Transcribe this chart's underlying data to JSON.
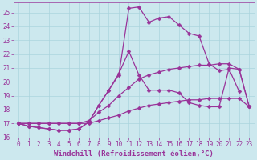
{
  "xlabel": "Windchill (Refroidissement éolien,°C)",
  "bg_color": "#cce8ee",
  "line_color": "#993399",
  "grid_color": "#aad4dd",
  "xlim": [
    -0.5,
    23.5
  ],
  "ylim": [
    16.0,
    25.7
  ],
  "xticks": [
    0,
    1,
    2,
    3,
    4,
    5,
    6,
    7,
    8,
    9,
    10,
    11,
    12,
    13,
    14,
    15,
    16,
    17,
    18,
    19,
    20,
    21,
    22,
    23
  ],
  "yticks": [
    16,
    17,
    18,
    19,
    20,
    21,
    22,
    23,
    24,
    25
  ],
  "line1_x": [
    0,
    1,
    2,
    3,
    4,
    5,
    6,
    7,
    8,
    9,
    10,
    11,
    12,
    13,
    14,
    15,
    16,
    17,
    18,
    19,
    20,
    21,
    22,
    23
  ],
  "line1_y": [
    17.0,
    17.0,
    17.0,
    17.0,
    17.0,
    17.0,
    17.0,
    17.0,
    17.2,
    17.4,
    17.6,
    17.9,
    18.1,
    18.3,
    18.4,
    18.5,
    18.6,
    18.7,
    18.7,
    18.8,
    18.8,
    18.8,
    18.8,
    18.2
  ],
  "line2_x": [
    0,
    1,
    2,
    3,
    4,
    5,
    6,
    7,
    8,
    9,
    10,
    11,
    12,
    13,
    14,
    15,
    16,
    17,
    18,
    19,
    20,
    21,
    22,
    23
  ],
  "line2_y": [
    17.0,
    17.0,
    17.0,
    17.0,
    17.0,
    17.0,
    17.0,
    17.2,
    17.8,
    18.3,
    19.0,
    19.6,
    20.2,
    20.5,
    20.7,
    20.9,
    21.0,
    21.1,
    21.2,
    21.2,
    21.3,
    21.3,
    20.9,
    18.2
  ],
  "line3_x": [
    0,
    1,
    2,
    3,
    4,
    5,
    6,
    7,
    8,
    9,
    10,
    11,
    12,
    13,
    14,
    15,
    16,
    17,
    18,
    19,
    20,
    21,
    22,
    23
  ],
  "line3_y": [
    17.0,
    16.8,
    16.7,
    16.6,
    16.5,
    16.5,
    16.6,
    17.1,
    18.3,
    19.4,
    20.6,
    22.2,
    20.5,
    19.4,
    19.4,
    19.4,
    19.2,
    18.5,
    18.3,
    18.2,
    18.2,
    21.0,
    20.9,
    18.2
  ],
  "line4_x": [
    0,
    1,
    2,
    3,
    4,
    5,
    6,
    7,
    8,
    9,
    10,
    11,
    12,
    13,
    14,
    15,
    16,
    17,
    18,
    19,
    20,
    21,
    22
  ],
  "line4_y": [
    17.0,
    16.8,
    16.7,
    16.6,
    16.5,
    16.5,
    16.6,
    17.1,
    18.3,
    19.4,
    20.5,
    25.3,
    25.4,
    24.3,
    24.6,
    24.7,
    24.1,
    23.5,
    23.3,
    21.3,
    20.8,
    20.9,
    19.3
  ],
  "marker": "D",
  "marker_size": 2.5,
  "linewidth": 0.9,
  "xlabel_fontsize": 6.5,
  "tick_fontsize": 5.5
}
